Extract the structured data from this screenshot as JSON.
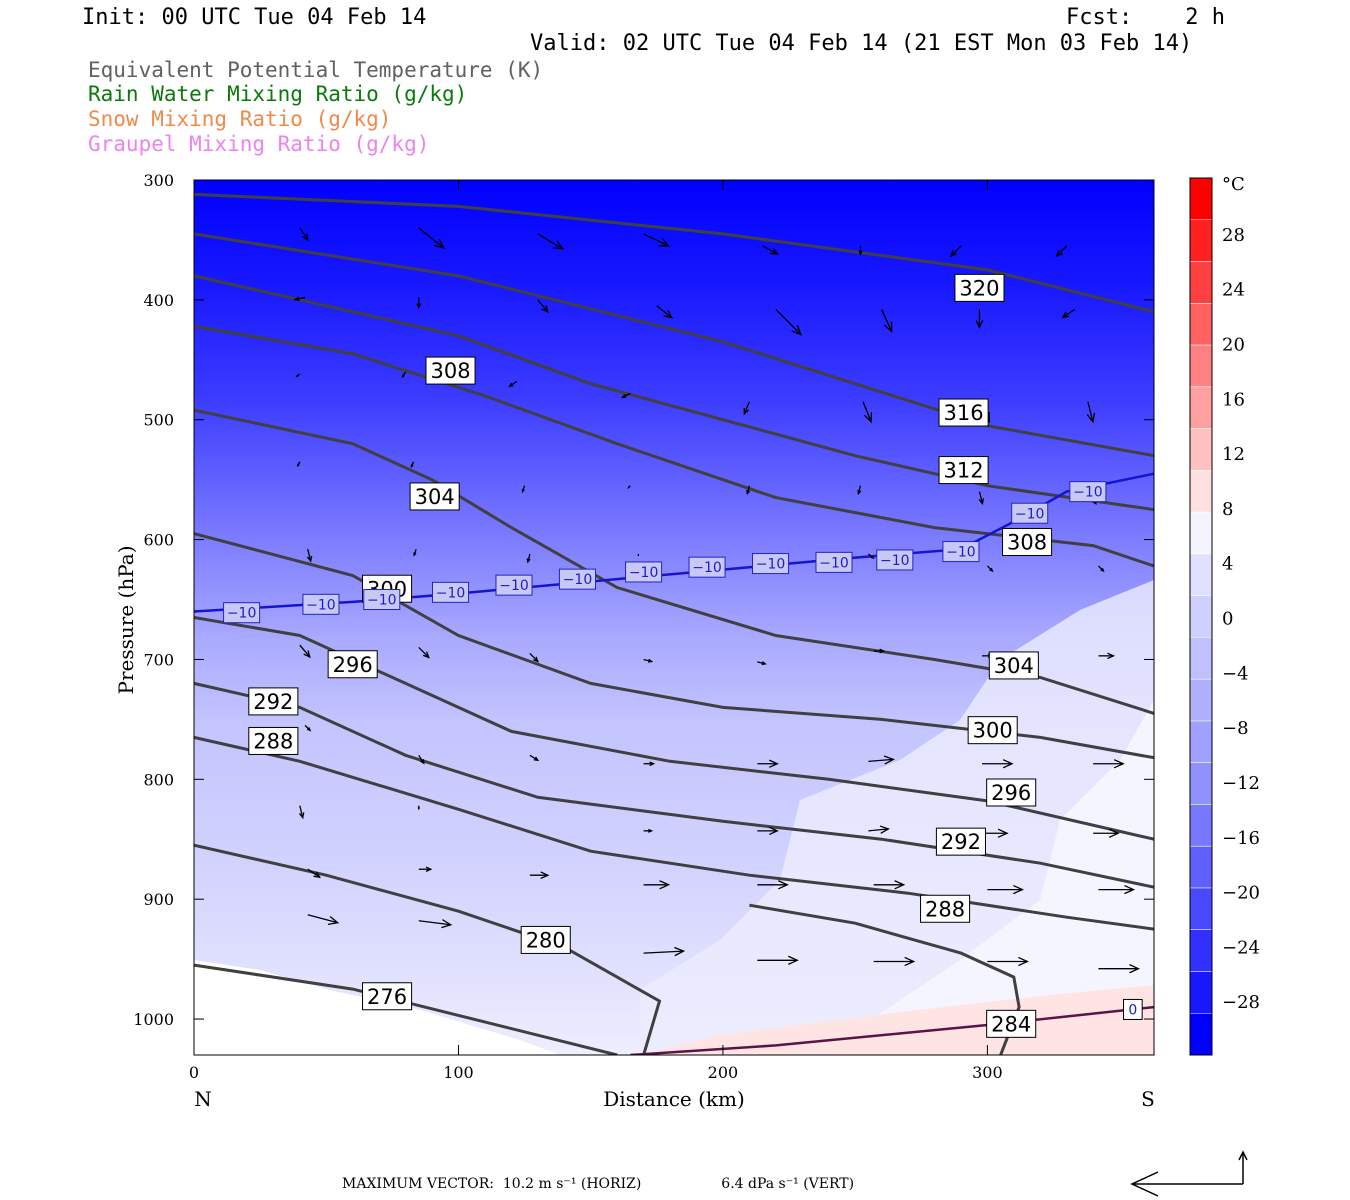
{
  "header": {
    "init": "Init: 00 UTC Tue 04 Feb 14",
    "fcst": "Fcst:    2 h",
    "valid": "Valid: 02 UTC Tue 04 Feb 14 (21 EST Mon 03 Feb 14)"
  },
  "legend": {
    "theta_e": "Equivalent Potential Temperature (K)",
    "rain": "Rain Water Mixing Ratio (g/kg)",
    "snow": "Snow Mixing Ratio (g/kg)",
    "graupel": "Graupel Mixing Ratio (g/kg)",
    "colors": {
      "theta_e": "#606060",
      "rain": "#0a7a0a",
      "snow": "#f08a4b",
      "graupel": "#ee82ee"
    }
  },
  "footer": {
    "max_vector_label": "MAXIMUM VECTOR:",
    "horiz": "10.2 m s⁻¹ (HORIZ)",
    "vert": "6.4 dPa s⁻¹ (VERT)",
    "ref_arrow_icon": "reference-vector-arrows"
  },
  "colorbar": {
    "unit": "°C",
    "labels": [
      "28",
      "24",
      "20",
      "16",
      "12",
      "8",
      "4",
      "0",
      "−4",
      "−8",
      "−12",
      "−16",
      "−20",
      "−24",
      "−28"
    ],
    "colors": [
      "#ff0000",
      "#ff2020",
      "#ff4040",
      "#ff6060",
      "#ff8080",
      "#ffa0a0",
      "#ffc0c0",
      "#ffe0e0",
      "#f4f4ff",
      "#e0e0ff",
      "#d0d0ff",
      "#c0c0ff",
      "#b0b0ff",
      "#a0a0ff",
      "#9090ff",
      "#7878ff",
      "#6060ff",
      "#4848ff",
      "#3030ff",
      "#1818ff",
      "#0000ff"
    ]
  },
  "chart_data": {
    "type": "cross-section",
    "ylabel": "Pressure (hPa)",
    "xlabel": "Distance (km)",
    "left_end": "N",
    "right_end": "S",
    "xlim": [
      0,
      363
    ],
    "ylim": [
      1030,
      300
    ],
    "y_scale": "linear",
    "x_ticks": [
      0,
      100,
      200,
      300
    ],
    "y_ticks": [
      300,
      400,
      500,
      600,
      700,
      800,
      900,
      1000
    ],
    "theta_e_contours": [
      {
        "label": "320",
        "label_at": [
          297,
          390
        ],
        "points": [
          [
            0,
            312
          ],
          [
            100,
            322
          ],
          [
            200,
            345
          ],
          [
            300,
            375
          ],
          [
            363,
            410
          ]
        ]
      },
      {
        "label": "316",
        "label_at": [
          291,
          494
        ],
        "points": [
          [
            0,
            345
          ],
          [
            100,
            380
          ],
          [
            200,
            435
          ],
          [
            300,
            505
          ],
          [
            363,
            530
          ]
        ]
      },
      {
        "label": "312",
        "label_at": [
          291,
          542
        ],
        "points": [
          [
            0,
            380
          ],
          [
            100,
            430
          ],
          [
            150,
            470
          ],
          [
            200,
            500
          ],
          [
            250,
            530
          ],
          [
            300,
            555
          ],
          [
            363,
            575
          ]
        ]
      },
      {
        "label": "308",
        "label_at": [
          97,
          459
        ],
        "points": [
          [
            0,
            422
          ],
          [
            60,
            445
          ],
          [
            110,
            480
          ],
          [
            160,
            520
          ],
          [
            220,
            565
          ],
          [
            280,
            590
          ],
          [
            340,
            605
          ],
          [
            363,
            622
          ]
        ]
      },
      {
        "label": "308",
        "label_at": [
          315,
          602
        ],
        "points": []
      },
      {
        "label": "304",
        "label_at": [
          91,
          564
        ],
        "points": [
          [
            0,
            492
          ],
          [
            60,
            520
          ],
          [
            90,
            550
          ],
          [
            120,
            590
          ],
          [
            160,
            640
          ],
          [
            220,
            680
          ],
          [
            280,
            700
          ],
          [
            320,
            715
          ],
          [
            363,
            745
          ]
        ]
      },
      {
        "label": "304",
        "label_at": [
          310,
          705
        ],
        "points": []
      },
      {
        "label": "300",
        "label_at": [
          73,
          641
        ],
        "points": [
          [
            0,
            595
          ],
          [
            60,
            630
          ],
          [
            100,
            680
          ],
          [
            150,
            720
          ],
          [
            200,
            740
          ],
          [
            260,
            750
          ],
          [
            320,
            765
          ],
          [
            363,
            782
          ]
        ]
      },
      {
        "label": "300",
        "label_at": [
          302,
          759
        ],
        "points": []
      },
      {
        "label": "296",
        "label_at": [
          60,
          704
        ],
        "points": [
          [
            0,
            665
          ],
          [
            40,
            680
          ],
          [
            80,
            720
          ],
          [
            120,
            760
          ],
          [
            180,
            785
          ],
          [
            240,
            800
          ],
          [
            300,
            818
          ],
          [
            363,
            850
          ]
        ]
      },
      {
        "label": "296",
        "label_at": [
          309,
          811
        ],
        "points": []
      },
      {
        "label": "292",
        "label_at": [
          30,
          735
        ],
        "points": [
          [
            0,
            720
          ],
          [
            40,
            740
          ],
          [
            80,
            780
          ],
          [
            130,
            815
          ],
          [
            200,
            835
          ],
          [
            260,
            850
          ],
          [
            320,
            870
          ],
          [
            363,
            890
          ]
        ]
      },
      {
        "label": "292",
        "label_at": [
          290,
          852
        ],
        "points": []
      },
      {
        "label": "288",
        "label_at": [
          30,
          768
        ],
        "points": [
          [
            0,
            765
          ],
          [
            40,
            785
          ],
          [
            100,
            825
          ],
          [
            150,
            860
          ],
          [
            210,
            880
          ],
          [
            270,
            895
          ],
          [
            330,
            915
          ],
          [
            363,
            925
          ]
        ]
      },
      {
        "label": "288",
        "label_at": [
          284,
          908
        ],
        "points": []
      },
      {
        "label": "280",
        "label_at": [
          133,
          934
        ],
        "points": [
          [
            0,
            855
          ],
          [
            50,
            880
          ],
          [
            100,
            910
          ],
          [
            140,
            940
          ],
          [
            160,
            965
          ],
          [
            176,
            985
          ],
          [
            170,
            1030
          ]
        ]
      },
      {
        "label": "276",
        "label_at": [
          73,
          981
        ],
        "points": [
          [
            0,
            955
          ],
          [
            60,
            975
          ],
          [
            100,
            997
          ],
          [
            160,
            1030
          ]
        ]
      },
      {
        "label": "284",
        "label_at": [
          309,
          1004
        ],
        "points": [
          [
            210,
            905
          ],
          [
            250,
            920
          ],
          [
            290,
            945
          ],
          [
            310,
            965
          ],
          [
            312,
            990
          ],
          [
            305,
            1030
          ]
        ]
      }
    ],
    "isotherm_minus10": {
      "label": "−10",
      "points": [
        [
          0,
          660
        ],
        [
          60,
          652
        ],
        [
          100,
          645
        ],
        [
          150,
          635
        ],
        [
          200,
          625
        ],
        [
          250,
          615
        ],
        [
          290,
          608
        ],
        [
          310,
          585
        ],
        [
          330,
          560
        ],
        [
          363,
          545
        ]
      ],
      "label_positions": [
        [
          18,
          661
        ],
        [
          48,
          654
        ],
        [
          71,
          650
        ],
        [
          97,
          644
        ],
        [
          121,
          638
        ],
        [
          145,
          633
        ],
        [
          170,
          627
        ],
        [
          194,
          623
        ],
        [
          218,
          620
        ],
        [
          242,
          619
        ],
        [
          265,
          617
        ],
        [
          290,
          610
        ],
        [
          316,
          578
        ],
        [
          338,
          560
        ]
      ]
    },
    "isotherm_0": {
      "label": "0",
      "points": [
        [
          165,
          1030
        ],
        [
          220,
          1022
        ],
        [
          300,
          1005
        ],
        [
          363,
          990
        ]
      ],
      "label_position": [
        355,
        992
      ]
    },
    "shading_summary": "Temperature shaded from about −30 °C (top) to about +4 °C near the surface in the south",
    "vectors": [
      {
        "x": 40,
        "p": 340,
        "dx": 8,
        "dy": 12
      },
      {
        "x": 85,
        "p": 340,
        "dx": 25,
        "dy": 20
      },
      {
        "x": 130,
        "p": 345,
        "dx": 25,
        "dy": 15
      },
      {
        "x": 170,
        "p": 345,
        "dx": 25,
        "dy": 12
      },
      {
        "x": 215,
        "p": 355,
        "dx": 15,
        "dy": 8
      },
      {
        "x": 252,
        "p": 355,
        "dx": 0,
        "dy": 8
      },
      {
        "x": 290,
        "p": 355,
        "dx": -10,
        "dy": 10
      },
      {
        "x": 330,
        "p": 355,
        "dx": -10,
        "dy": 10
      },
      {
        "x": 42,
        "p": 398,
        "dx": -10,
        "dy": 2
      },
      {
        "x": 85,
        "p": 398,
        "dx": 0,
        "dy": 10
      },
      {
        "x": 130,
        "p": 400,
        "dx": 10,
        "dy": 12
      },
      {
        "x": 175,
        "p": 405,
        "dx": 15,
        "dy": 12
      },
      {
        "x": 220,
        "p": 408,
        "dx": 25,
        "dy": 25
      },
      {
        "x": 260,
        "p": 408,
        "dx": 10,
        "dy": 22
      },
      {
        "x": 297,
        "p": 408,
        "dx": 0,
        "dy": 18
      },
      {
        "x": 333,
        "p": 408,
        "dx": -12,
        "dy": 8
      },
      {
        "x": 40,
        "p": 462,
        "dx": -3,
        "dy": 2
      },
      {
        "x": 80,
        "p": 460,
        "dx": -3,
        "dy": 5
      },
      {
        "x": 122,
        "p": 468,
        "dx": -7,
        "dy": 5
      },
      {
        "x": 165,
        "p": 478,
        "dx": -8,
        "dy": 4
      },
      {
        "x": 210,
        "p": 485,
        "dx": -5,
        "dy": 12
      },
      {
        "x": 253,
        "p": 485,
        "dx": 8,
        "dy": 20
      },
      {
        "x": 297,
        "p": 485,
        "dx": 10,
        "dy": 20
      },
      {
        "x": 338,
        "p": 485,
        "dx": 5,
        "dy": 20
      },
      {
        "x": 40,
        "p": 535,
        "dx": -2,
        "dy": 4
      },
      {
        "x": 83,
        "p": 535,
        "dx": -2,
        "dy": 5
      },
      {
        "x": 125,
        "p": 555,
        "dx": -2,
        "dy": 6
      },
      {
        "x": 165,
        "p": 555,
        "dx": -2,
        "dy": 2
      },
      {
        "x": 210,
        "p": 555,
        "dx": -2,
        "dy": 8
      },
      {
        "x": 252,
        "p": 555,
        "dx": -2,
        "dy": 8
      },
      {
        "x": 297,
        "p": 560,
        "dx": 3,
        "dy": 12
      },
      {
        "x": 338,
        "p": 560,
        "dx": 8,
        "dy": 12
      },
      {
        "x": 43,
        "p": 608,
        "dx": 3,
        "dy": 12
      },
      {
        "x": 84,
        "p": 608,
        "dx": -2,
        "dy": 6
      },
      {
        "x": 127,
        "p": 612,
        "dx": -2,
        "dy": 8
      },
      {
        "x": 168,
        "p": 612,
        "dx": 0,
        "dy": 2
      },
      {
        "x": 213,
        "p": 612,
        "dx": 5,
        "dy": 4
      },
      {
        "x": 255,
        "p": 612,
        "dx": 5,
        "dy": 4
      },
      {
        "x": 300,
        "p": 622,
        "dx": 5,
        "dy": 5
      },
      {
        "x": 342,
        "p": 622,
        "dx": 5,
        "dy": 5
      },
      {
        "x": 40,
        "p": 688,
        "dx": 10,
        "dy": 12
      },
      {
        "x": 85,
        "p": 690,
        "dx": 10,
        "dy": 10
      },
      {
        "x": 127,
        "p": 695,
        "dx": 8,
        "dy": 8
      },
      {
        "x": 170,
        "p": 700,
        "dx": 8,
        "dy": 2
      },
      {
        "x": 213,
        "p": 702,
        "dx": 8,
        "dy": 2
      },
      {
        "x": 257,
        "p": 693,
        "dx": 10,
        "dy": 0
      },
      {
        "x": 298,
        "p": 697,
        "dx": 10,
        "dy": 0
      },
      {
        "x": 342,
        "p": 697,
        "dx": 15,
        "dy": 0
      },
      {
        "x": 42,
        "p": 755,
        "dx": 5,
        "dy": 5
      },
      {
        "x": 85,
        "p": 780,
        "dx": 5,
        "dy": 8
      },
      {
        "x": 127,
        "p": 780,
        "dx": 8,
        "dy": 5
      },
      {
        "x": 170,
        "p": 787,
        "dx": 10,
        "dy": 0
      },
      {
        "x": 213,
        "p": 787,
        "dx": 20,
        "dy": 0
      },
      {
        "x": 255,
        "p": 785,
        "dx": 25,
        "dy": -2
      },
      {
        "x": 298,
        "p": 787,
        "dx": 30,
        "dy": 0
      },
      {
        "x": 340,
        "p": 787,
        "dx": 30,
        "dy": 0
      },
      {
        "x": 40,
        "p": 822,
        "dx": 3,
        "dy": 12
      },
      {
        "x": 85,
        "p": 822,
        "dx": 0,
        "dy": 3
      },
      {
        "x": 127,
        "p": 832,
        "dx": 0,
        "dy": 0
      },
      {
        "x": 170,
        "p": 843,
        "dx": 8,
        "dy": 0
      },
      {
        "x": 213,
        "p": 843,
        "dx": 20,
        "dy": 0
      },
      {
        "x": 255,
        "p": 843,
        "dx": 20,
        "dy": -2
      },
      {
        "x": 298,
        "p": 845,
        "dx": 25,
        "dy": 0
      },
      {
        "x": 340,
        "p": 845,
        "dx": 25,
        "dy": 0
      },
      {
        "x": 43,
        "p": 875,
        "dx": 12,
        "dy": 8
      },
      {
        "x": 85,
        "p": 875,
        "dx": 12,
        "dy": 0
      },
      {
        "x": 127,
        "p": 880,
        "dx": 18,
        "dy": 0
      },
      {
        "x": 170,
        "p": 888,
        "dx": 25,
        "dy": 0
      },
      {
        "x": 213,
        "p": 888,
        "dx": 30,
        "dy": 0
      },
      {
        "x": 257,
        "p": 888,
        "dx": 30,
        "dy": 0
      },
      {
        "x": 300,
        "p": 892,
        "dx": 35,
        "dy": 0
      },
      {
        "x": 342,
        "p": 892,
        "dx": 35,
        "dy": 0
      },
      {
        "x": 43,
        "p": 913,
        "dx": 30,
        "dy": 8
      },
      {
        "x": 85,
        "p": 918,
        "dx": 32,
        "dy": 4
      },
      {
        "x": 127,
        "p": 935,
        "dx": 35,
        "dy": -2
      },
      {
        "x": 170,
        "p": 945,
        "dx": 40,
        "dy": -2
      },
      {
        "x": 213,
        "p": 951,
        "dx": 40,
        "dy": 0
      },
      {
        "x": 257,
        "p": 952,
        "dx": 40,
        "dy": 0
      },
      {
        "x": 300,
        "p": 952,
        "dx": 40,
        "dy": 0
      },
      {
        "x": 342,
        "p": 958,
        "dx": 40,
        "dy": 0
      }
    ]
  }
}
